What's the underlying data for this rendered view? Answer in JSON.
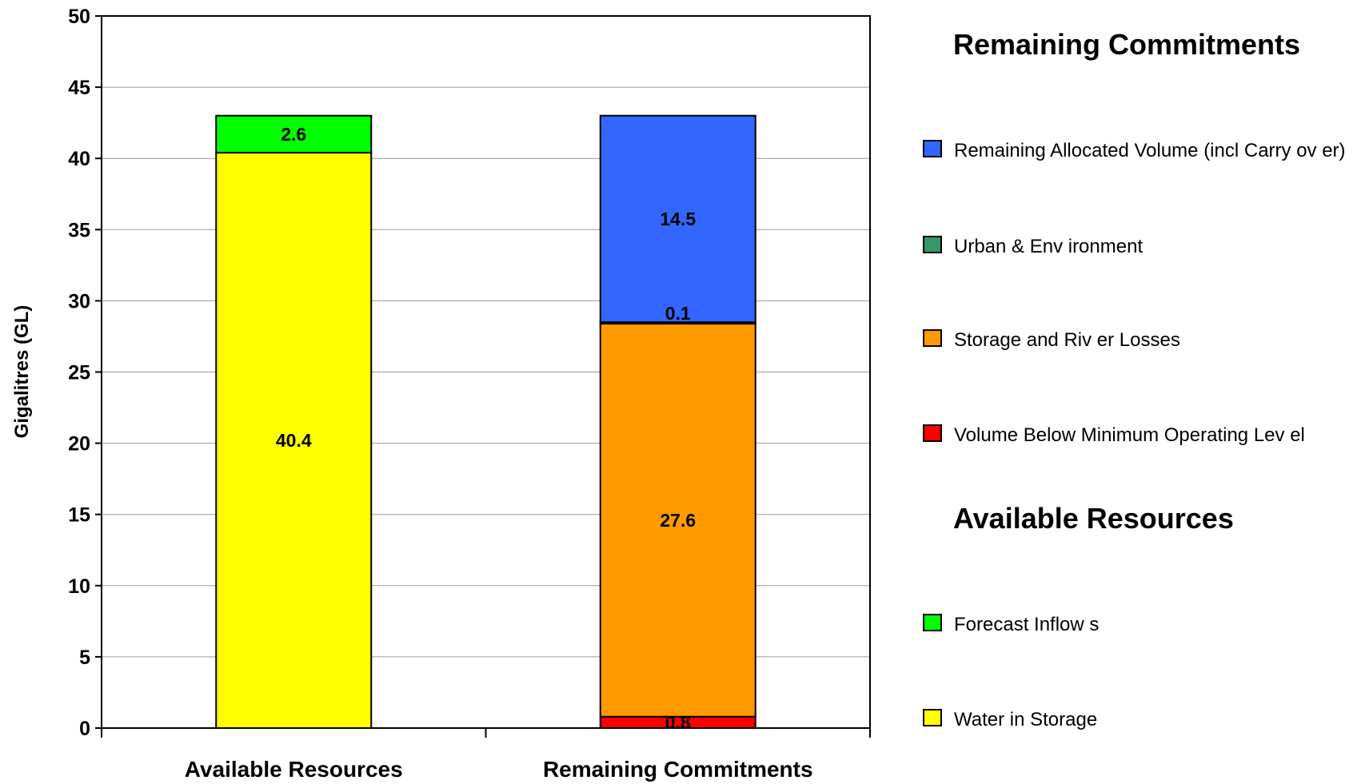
{
  "chart_data": {
    "type": "bar",
    "stacked": true,
    "categories": [
      "Available Resources",
      "Remaining Commitments"
    ],
    "ylabel": "Gigalitres (GL)",
    "xlabel": "",
    "ylim": [
      0,
      50
    ],
    "yticks": [
      0,
      5,
      10,
      15,
      20,
      25,
      30,
      35,
      40,
      45,
      50
    ],
    "ytick_labels": [
      "0",
      "5",
      "10",
      "15",
      "20",
      "25",
      "30",
      "35",
      "40",
      "45",
      "50"
    ],
    "grid": true,
    "legend_position": "right",
    "series": [
      {
        "name": "Water in Storage",
        "group": "Available Resources",
        "color": "#FFFF00",
        "values": [
          40.4,
          0
        ],
        "labels": [
          "40.4",
          ""
        ]
      },
      {
        "name": "Forecast Inflows",
        "group": "Available Resources",
        "color": "#00FF00",
        "values": [
          2.6,
          0
        ],
        "labels": [
          "2.6",
          ""
        ]
      },
      {
        "name": "Volume Below Minimum Operating Level",
        "group": "Remaining Commitments",
        "color": "#FF0000",
        "values": [
          0,
          0.8
        ],
        "labels": [
          "",
          "0.8"
        ]
      },
      {
        "name": "Storage and River Losses",
        "group": "Remaining Commitments",
        "color": "#FF9900",
        "values": [
          0,
          27.6
        ],
        "labels": [
          "",
          "27.6"
        ]
      },
      {
        "name": "Urban & Environment",
        "group": "Remaining Commitments",
        "color": "#339966",
        "values": [
          0,
          0.1
        ],
        "labels": [
          "",
          "0.1"
        ]
      },
      {
        "name": "Remaining Allocated Volume (incl Carryover)",
        "group": "Remaining Commitments",
        "color": "#3366FF",
        "values": [
          0,
          14.5
        ],
        "labels": [
          "",
          "14.5"
        ]
      }
    ],
    "legend": [
      {
        "heading": "Remaining Commitments",
        "items": [
          {
            "label": "Remaining Allocated Volume (incl Carry ov er)",
            "color": "#3366FF"
          },
          {
            "label": "Urban & Env ironment",
            "color": "#339966"
          },
          {
            "label": "Storage and Riv er Losses",
            "color": "#FF9900"
          },
          {
            "label": "Volume Below  Minimum Operating Lev el",
            "color": "#FF0000"
          }
        ]
      },
      {
        "heading": "Available Resources",
        "items": [
          {
            "label": "Forecast Inflow s",
            "color": "#00FF00"
          },
          {
            "label": "Water in Storage",
            "color": "#FFFF00"
          }
        ]
      }
    ]
  }
}
